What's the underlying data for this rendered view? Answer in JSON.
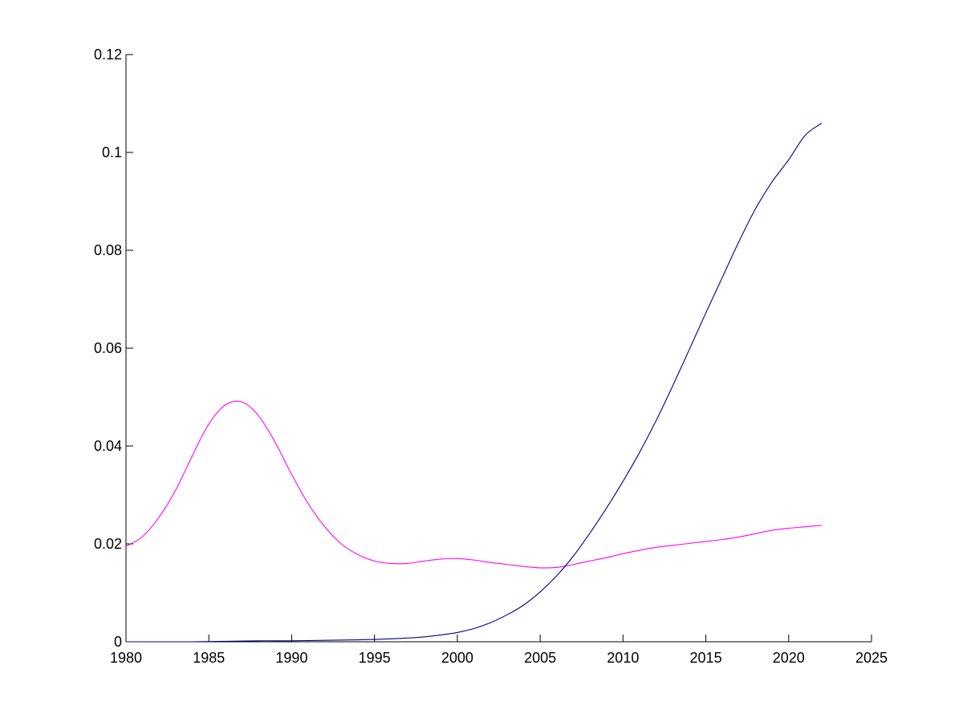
{
  "chart_data": {
    "type": "line",
    "title": "",
    "xlabel": "",
    "ylabel": "",
    "xlim": [
      1980,
      2025
    ],
    "ylim": [
      0,
      0.12
    ],
    "xticks": [
      1980,
      1985,
      1990,
      1995,
      2000,
      2005,
      2010,
      2015,
      2020,
      2025
    ],
    "xtick_labels": [
      "1980",
      "1985",
      "1990",
      "1995",
      "2000",
      "2005",
      "2010",
      "2015",
      "2020",
      "2025"
    ],
    "yticks": [
      0,
      0.02,
      0.04,
      0.06,
      0.08,
      0.1,
      0.12
    ],
    "ytick_labels": [
      "0",
      "0.02",
      "0.04",
      "0.06",
      "0.08",
      "0.1",
      "0.12"
    ],
    "grid": false,
    "legend": "none",
    "series": [
      {
        "color": "#ff00ff",
        "x": [
          1980,
          1981,
          1982,
          1983,
          1984,
          1985,
          1986,
          1987,
          1988,
          1989,
          1990,
          1991,
          1992,
          1993,
          1994,
          1995,
          1996,
          1997,
          1998,
          1999,
          2000,
          2001,
          2002,
          2003,
          2004,
          2005,
          2006,
          2007,
          2008,
          2009,
          2010,
          2011,
          2012,
          2013,
          2014,
          2015,
          2016,
          2017,
          2018,
          2019,
          2020,
          2021,
          2022
        ],
        "values": [
          0.0195,
          0.0215,
          0.0255,
          0.031,
          0.038,
          0.0445,
          0.0484,
          0.049,
          0.0462,
          0.0408,
          0.0342,
          0.0282,
          0.0235,
          0.02,
          0.0178,
          0.0165,
          0.016,
          0.016,
          0.0165,
          0.0169,
          0.017,
          0.0167,
          0.0162,
          0.0158,
          0.0154,
          0.0151,
          0.0152,
          0.0158,
          0.0165,
          0.0172,
          0.018,
          0.0187,
          0.0193,
          0.0197,
          0.0201,
          0.0205,
          0.0209,
          0.0214,
          0.0221,
          0.0228,
          0.0232,
          0.0235,
          0.0238
        ]
      },
      {
        "color": "#00008b",
        "x": [
          1980,
          1982,
          1984,
          1986,
          1988,
          1990,
          1992,
          1994,
          1996,
          1998,
          1999,
          2000,
          2001,
          2002,
          2003,
          2004,
          2005,
          2006,
          2007,
          2008,
          2009,
          2010,
          2011,
          2012,
          2013,
          2014,
          2015,
          2016,
          2017,
          2018,
          2019,
          2020,
          2021,
          2022
        ],
        "values": [
          0.0,
          0.0,
          0.0,
          0.0001,
          0.0002,
          0.0002,
          0.0003,
          0.0004,
          0.0006,
          0.001,
          0.0014,
          0.0019,
          0.0027,
          0.0039,
          0.0055,
          0.0075,
          0.0102,
          0.0135,
          0.0175,
          0.0222,
          0.0273,
          0.0328,
          0.0387,
          0.0452,
          0.0523,
          0.0597,
          0.0672,
          0.0745,
          0.0818,
          0.0885,
          0.094,
          0.0985,
          0.1035,
          0.106
        ]
      }
    ]
  }
}
